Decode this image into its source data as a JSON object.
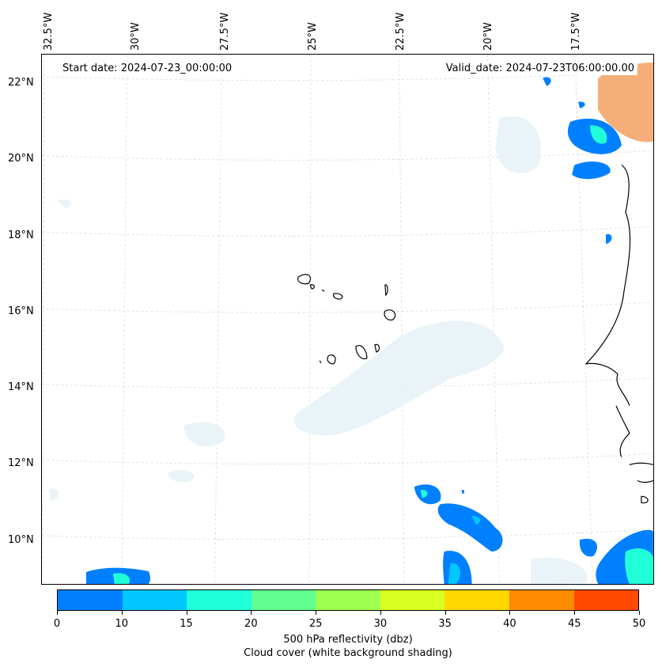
{
  "header": {
    "start_date": "Start date: 2024-07-23_00:00:00",
    "valid_date": "Valid_date: 2024-07-23T06:00:00.00"
  },
  "axes": {
    "longitude_labels": [
      "32.5°W",
      "30°W",
      "27.5°W",
      "25°W",
      "22.5°W",
      "20°W",
      "17.5°W"
    ],
    "latitude_labels": [
      "22°N",
      "20°N",
      "18°N",
      "16°N",
      "14°N",
      "12°N",
      "10°N"
    ]
  },
  "colorbar": {
    "ticks": [
      "0",
      "10",
      "15",
      "20",
      "25",
      "30",
      "35",
      "40",
      "45",
      "50"
    ],
    "colors": [
      "#0080ff",
      "#00c8ff",
      "#20ffd8",
      "#60ff90",
      "#a0ff50",
      "#d8ff20",
      "#ffd800",
      "#ff8c00",
      "#ff4800"
    ],
    "caption_line1": "500 hPa reflectivity (dbz)",
    "caption_line2": "Cloud cover (white background shading)"
  },
  "colors": {
    "grid": "#d8d8d8",
    "coast": "#000000",
    "cloud": "#e8f2f6",
    "dust": "#f4a060"
  }
}
